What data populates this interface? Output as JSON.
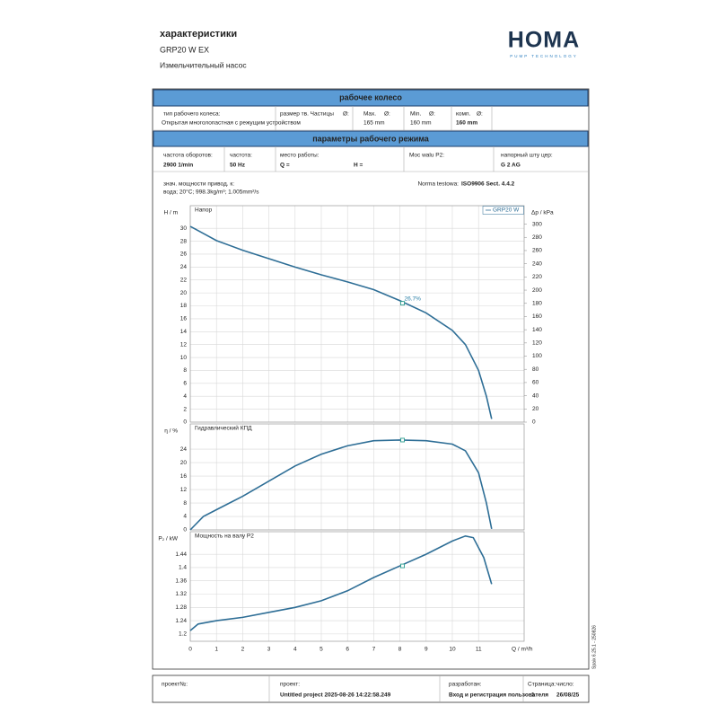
{
  "header": {
    "title": "характеристики",
    "model": "GRP20 W EX",
    "description": "Измельчительный насос"
  },
  "logo": {
    "name": "HOMA",
    "tagline": "PUMP TECHNOLOGY"
  },
  "impeller": {
    "title": "рабочее колесо",
    "type_label": "тип рабочего колеса:",
    "type_value": "Открытая многолопастная с режущим устройством",
    "solids_label": "размер тв. Частицы",
    "solids_symbol": "Ø:",
    "max_label": "Max.",
    "max_symbol": "Ø:",
    "max_value": "165 mm",
    "min_label": "Min.",
    "min_symbol": "Ø:",
    "min_value": "160 mm",
    "comp_label": "комп.",
    "comp_symbol": "Ø:",
    "comp_value": "160 mm"
  },
  "operating": {
    "title": "параметры рабочего режима",
    "speed_label": "частота оборотов:",
    "speed_value": "2900 1/min",
    "frequency_label": "частота:",
    "frequency_value": "50 Hz",
    "duty_label": "место работы:",
    "q_label": "Q =",
    "h_label": "H =",
    "power_label": "Moc walu P2:",
    "outlet_label": "напорный шту цер:",
    "outlet_value": "G 2 AG"
  },
  "notes": {
    "power_note": "знач. мощности привод. к:",
    "fluid": "вода; 20°C; 998.3kg/m³; 1.005mm²/s",
    "standard_label": "Norma testowa:",
    "standard_value": "ISO9906 Sect. 4.4.2"
  },
  "chart_data": [
    {
      "type": "line",
      "title": "Напор",
      "ylabel": "H / m",
      "y2label": "Δp / kPa",
      "xlim": [
        0,
        12.74
      ],
      "ylim": [
        0,
        33.5
      ],
      "yticks": [
        0,
        2,
        4,
        6,
        8,
        10,
        12,
        14,
        16,
        18,
        20,
        22,
        24,
        26,
        28,
        30
      ],
      "y2lim": [
        0,
        328
      ],
      "y2ticks": [
        0,
        20,
        40,
        60,
        80,
        100,
        120,
        140,
        160,
        180,
        200,
        220,
        240,
        260,
        280,
        300
      ],
      "grid": true,
      "legend": "upper right",
      "x": [
        0,
        0.5,
        1,
        2,
        3,
        4,
        5,
        6,
        7,
        8,
        9,
        10,
        10.5,
        11,
        11.3,
        11.5
      ],
      "series": [
        {
          "name": "GRP20 W",
          "color": "#2e6e96",
          "values": [
            30.3,
            29.2,
            28.1,
            26.6,
            25.3,
            24,
            22.8,
            21.7,
            20.5,
            18.8,
            16.9,
            14.2,
            12,
            8,
            4,
            0.5
          ]
        }
      ],
      "operating_point": {
        "x": 8.1,
        "y": 18.4
      },
      "annotation": "26.7%"
    },
    {
      "type": "line",
      "title": "Гидравлический КПД",
      "ylabel": "η / %",
      "xlim": [
        0,
        12.74
      ],
      "ylim": [
        0,
        31.5
      ],
      "yticks": [
        0,
        4,
        8,
        12,
        16,
        20,
        24
      ],
      "grid": true,
      "x": [
        0,
        0.5,
        1,
        2,
        3,
        4,
        5,
        6,
        7,
        8,
        9,
        10,
        10.5,
        11,
        11.3,
        11.5
      ],
      "series": [
        {
          "color": "#2e6e96",
          "values": [
            0,
            4,
            6,
            10,
            14.5,
            19,
            22.5,
            25,
            26.5,
            26.7,
            26.5,
            25.5,
            23.5,
            17,
            8,
            0.3
          ]
        }
      ],
      "operating_point": {
        "x": 8.1,
        "y": 26.7
      }
    },
    {
      "type": "line",
      "title": "Мощность на валу P2",
      "ylabel": "P₂ / kW",
      "xlabel": "Q / m³/h",
      "xlim": [
        0,
        12.74
      ],
      "ylim": [
        1.178,
        1.508
      ],
      "yticks": [
        1.2,
        1.24,
        1.28,
        1.32,
        1.36,
        1.4,
        1.44
      ],
      "xticks": [
        0,
        1,
        2,
        3,
        4,
        5,
        6,
        7,
        8,
        9,
        10,
        11
      ],
      "grid": true,
      "x": [
        0,
        0.3,
        1,
        2,
        3,
        4,
        5,
        6,
        7,
        8,
        9,
        10,
        10.5,
        10.8,
        11.2,
        11.5
      ],
      "series": [
        {
          "color": "#2e6e96",
          "values": [
            1.21,
            1.23,
            1.24,
            1.25,
            1.265,
            1.28,
            1.3,
            1.33,
            1.37,
            1.405,
            1.44,
            1.48,
            1.495,
            1.49,
            1.43,
            1.35
          ]
        }
      ],
      "operating_point": {
        "x": 8.1,
        "y": 1.405
      }
    }
  ],
  "footer": {
    "project_no_label": "проект№:",
    "project_label": "проект:",
    "project_value": "Untitled project 2025-08-26 14:22:58.249",
    "author_label": "разработан:",
    "author_value": "Вход и регистрация пользователя",
    "page_label": "Страница:",
    "page_value": "1",
    "date_label": "число:",
    "date_value": "26/08/25"
  },
  "side_note": "Spaix 6.25.1 - 250826"
}
